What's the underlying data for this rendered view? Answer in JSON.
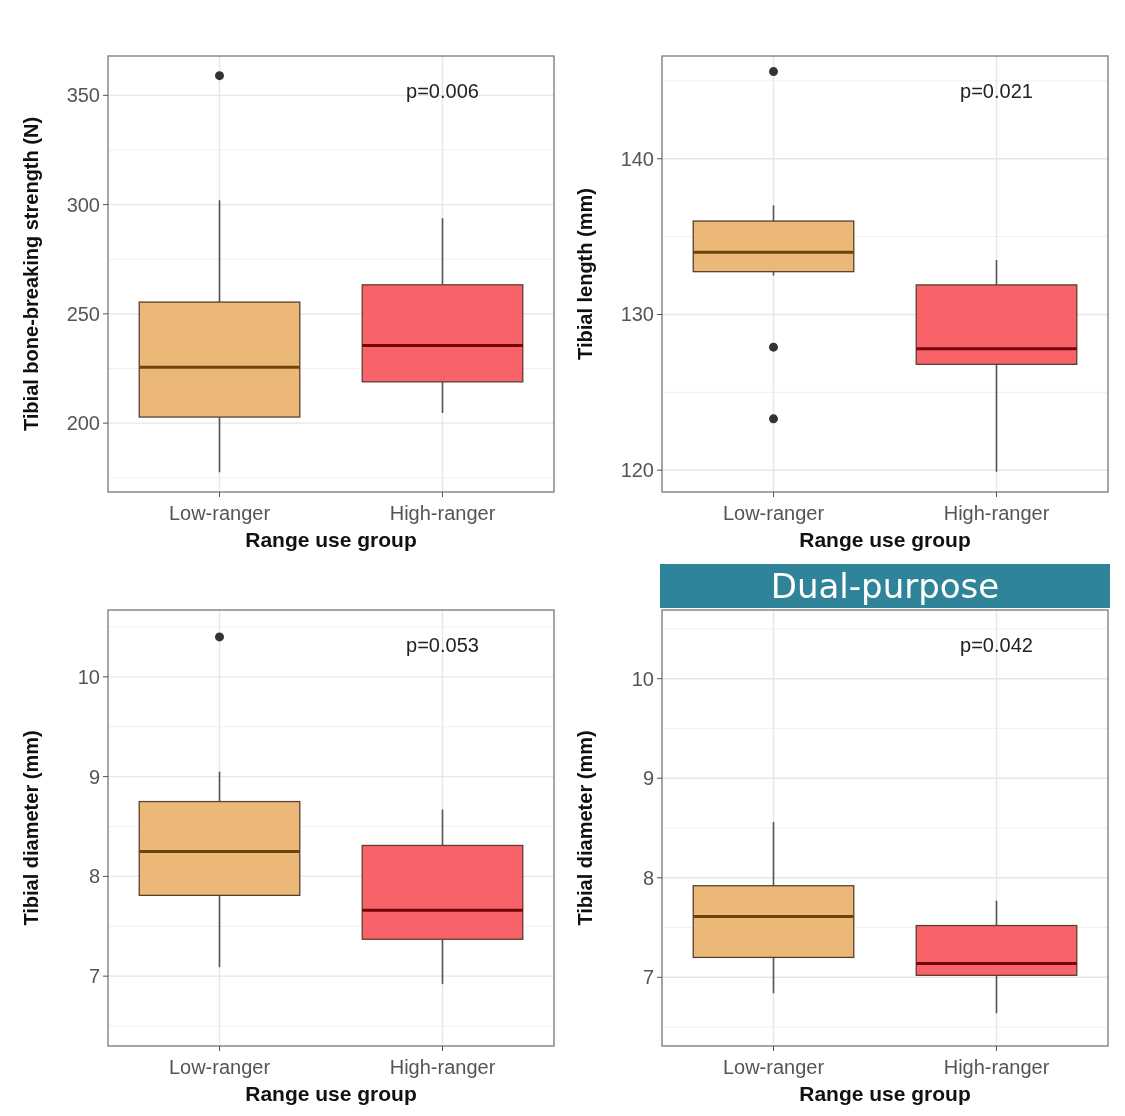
{
  "chart_data": [
    {
      "type": "box",
      "categories": [
        "Low-ranger",
        "High-ranger"
      ],
      "xlabel": "Range use group",
      "ylabel": "Tibial bone-breaking strength (N)",
      "ylim": [
        168.5,
        368
      ],
      "yticks": [
        200,
        250,
        300,
        350
      ],
      "grid": true,
      "colors": [
        "#ecb878",
        "#f8636a"
      ],
      "annotations": [
        "p=0.006"
      ],
      "boxes": [
        {
          "low": 177.5,
          "q1": 202.8,
          "median": 225.6,
          "q3": 255.4,
          "high": 302,
          "outliers": [
            359
          ]
        },
        {
          "low": 204.7,
          "q1": 218.9,
          "median": 235.5,
          "q3": 263.3,
          "high": 293.8
        }
      ]
    },
    {
      "type": "box",
      "categories": [
        "Low-ranger",
        "High-ranger"
      ],
      "xlabel": "Range use group",
      "ylabel": "Tibial length (mm)",
      "ylim": [
        118.6,
        146.6
      ],
      "yticks": [
        120,
        130,
        140
      ],
      "grid": true,
      "colors": [
        "#ecb878",
        "#f8636a"
      ],
      "annotations": [
        "p=0.021"
      ],
      "boxes": [
        {
          "low": 132.5,
          "q1": 132.75,
          "median": 134,
          "q3": 136,
          "high": 137,
          "outliers": [
            145.6,
            127.9,
            123.3
          ]
        },
        {
          "low": 119.9,
          "q1": 126.8,
          "median": 127.8,
          "q3": 131.9,
          "high": 133.5
        }
      ]
    },
    {
      "type": "box",
      "categories": [
        "Low-ranger",
        "High-ranger"
      ],
      "xlabel": "Range use group",
      "ylabel": "Tibial diameter (mm)",
      "ylim": [
        6.3,
        10.67
      ],
      "yticks": [
        7,
        8,
        9,
        10
      ],
      "grid": true,
      "colors": [
        "#ecb878",
        "#f8636a"
      ],
      "annotations": [
        "p=0.053"
      ],
      "boxes": [
        {
          "low": 7.09,
          "q1": 7.81,
          "median": 8.25,
          "q3": 8.75,
          "high": 9.05,
          "outliers": [
            10.4
          ]
        },
        {
          "low": 6.92,
          "q1": 7.37,
          "median": 7.66,
          "q3": 8.31,
          "high": 8.67
        }
      ]
    },
    {
      "type": "box",
      "title": "Dual-purpose",
      "categories": [
        "Low-ranger",
        "High-ranger"
      ],
      "xlabel": "Range use group",
      "ylabel": "Tibial diameter (mm)",
      "ylim": [
        6.31,
        10.69
      ],
      "yticks": [
        7,
        8,
        9,
        10
      ],
      "grid": true,
      "colors": [
        "#ecb878",
        "#f8636a"
      ],
      "annotations": [
        "p=0.042"
      ],
      "boxes": [
        {
          "low": 6.84,
          "q1": 7.2,
          "median": 7.61,
          "q3": 7.92,
          "high": 8.56
        },
        {
          "low": 6.64,
          "q1": 7.02,
          "median": 7.14,
          "q3": 7.52,
          "high": 7.77
        }
      ]
    }
  ]
}
